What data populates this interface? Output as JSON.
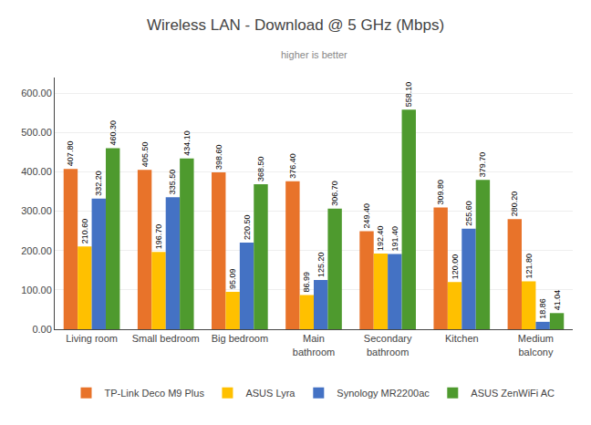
{
  "chart_data": {
    "type": "bar",
    "title": "Wireless LAN - Download @ 5 GHz (Mbps)",
    "subtitle": "higher is better",
    "categories": [
      "Living room",
      "Small bedroom",
      "Big bedroom",
      "Main\nbathroom",
      "Secondary\nbathroom",
      "Kitchen",
      "Medium\nbalcony"
    ],
    "series": [
      {
        "name": "TP-Link Deco M9 Plus",
        "color": "#E8732A",
        "values": [
          407.8,
          405.5,
          398.6,
          376.4,
          249.4,
          309.8,
          280.2
        ],
        "value_labels": [
          "407.80",
          "405.50",
          "398.60",
          "376.40",
          "249.40",
          "309.80",
          "280.20"
        ]
      },
      {
        "name": "ASUS Lyra",
        "color": "#FFC000",
        "values": [
          210.6,
          196.7,
          95.09,
          86.99,
          192.4,
          120.0,
          121.8
        ],
        "value_labels": [
          "210.60",
          "196.70",
          "95.09",
          "86.99",
          "192.40",
          "120.00",
          "121.80"
        ]
      },
      {
        "name": "Synology MR2200ac",
        "color": "#4472C4",
        "values": [
          332.2,
          335.5,
          220.5,
          125.2,
          191.4,
          255.6,
          18.86
        ],
        "value_labels": [
          "332.20",
          "335.50",
          "220.50",
          "125.20",
          "191.40",
          "255.60",
          "18.86"
        ]
      },
      {
        "name": "ASUS ZenWiFi AC",
        "color": "#4E9A2E",
        "values": [
          460.3,
          434.1,
          368.5,
          306.7,
          558.1,
          379.7,
          41.04
        ],
        "value_labels": [
          "460.30",
          "434.10",
          "368.50",
          "306.70",
          "558.10",
          "379.70",
          "41.04"
        ]
      }
    ],
    "ylim": [
      0,
      640
    ],
    "yticks": [
      {
        "value": 0,
        "label": "0.00"
      },
      {
        "value": 100,
        "label": "100.00"
      },
      {
        "value": 200,
        "label": "200.00"
      },
      {
        "value": 300,
        "label": "300.00"
      },
      {
        "value": 400,
        "label": "400.00"
      },
      {
        "value": 500,
        "label": "500.00"
      },
      {
        "value": 600,
        "label": "600.00"
      }
    ],
    "grid": true,
    "legend": "bottom",
    "data_labels": true
  }
}
